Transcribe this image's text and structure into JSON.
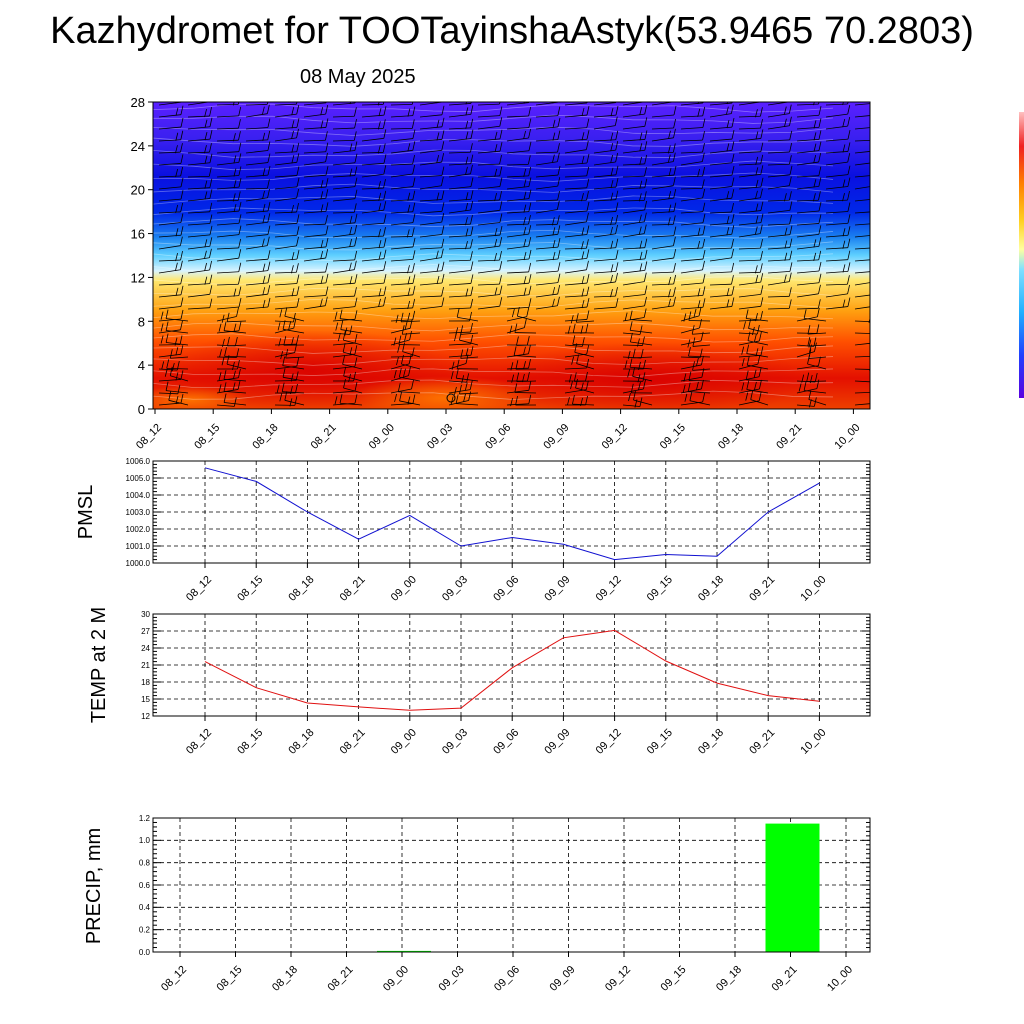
{
  "title": "Kazhydromet for TOOTayinshaAstyk(53.9465 70.2803)",
  "date": "08 May 2025",
  "colors": {
    "pressure_line": "#1010d0",
    "temperature_line": "#e01010",
    "precip_bar": "#00ff00",
    "cross_section_scale": [
      "#2a00ff",
      "#0020e0",
      "#0a5ae0",
      "#60d0ff",
      "#e8f0e0",
      "#ffe060",
      "#ffa000",
      "#ff4000",
      "#e00000"
    ],
    "wind_barbs": "#000000"
  },
  "chart_data": [
    {
      "type": "heatmap",
      "name": "cross-section",
      "x": [
        "08_12",
        "08_15",
        "08_18",
        "08_21",
        "09_00",
        "09_03",
        "09_06",
        "09_09",
        "09_12",
        "09_15",
        "09_18",
        "09_21",
        "10_00"
      ],
      "yticks": [
        "0",
        "4",
        "8",
        "12",
        "16",
        "20",
        "24",
        "28"
      ],
      "ylim": [
        0,
        28
      ],
      "overlay": "wind barbs"
    },
    {
      "type": "line",
      "ylabel": "PMSL",
      "x": [
        "08_12",
        "08_15",
        "08_18",
        "08_21",
        "09_00",
        "09_03",
        "09_06",
        "09_09",
        "09_12",
        "09_15",
        "09_18",
        "09_21",
        "10_00"
      ],
      "values": [
        1005.6,
        1004.8,
        1003.0,
        1001.4,
        1002.8,
        1001.0,
        1001.5,
        1001.1,
        1000.2,
        1000.5,
        1000.4,
        1003.0,
        1004.7
      ],
      "ylim": [
        1000.0,
        1006.0
      ],
      "yticks": [
        "1000.0",
        "1001.0",
        "1002.0",
        "1003.0",
        "1004.0",
        "1005.0",
        "1006.0"
      ],
      "grid": true
    },
    {
      "type": "line",
      "ylabel": "TEMP at 2 M",
      "x": [
        "08_12",
        "08_15",
        "08_18",
        "08_21",
        "09_00",
        "09_03",
        "09_06",
        "09_09",
        "09_12",
        "09_15",
        "09_18",
        "09_21",
        "10_00"
      ],
      "values": [
        21.6,
        17.0,
        14.3,
        13.6,
        13.0,
        13.4,
        20.5,
        25.8,
        27.1,
        21.7,
        17.8,
        15.6,
        14.6
      ],
      "ylim": [
        12,
        30
      ],
      "yticks": [
        "12",
        "15",
        "18",
        "21",
        "24",
        "27",
        "30"
      ],
      "grid": true
    },
    {
      "type": "bar",
      "ylabel": "PRECIP, mm",
      "x": [
        "08_12",
        "08_15",
        "08_18",
        "08_21",
        "09_00",
        "09_03",
        "09_06",
        "09_09",
        "09_12",
        "09_15",
        "09_18",
        "09_21",
        "10_00"
      ],
      "values": [
        0,
        0,
        0,
        0,
        0.01,
        0,
        0,
        0,
        0,
        0,
        0,
        1.15,
        0
      ],
      "ylim": [
        0,
        1.2
      ],
      "yticks": [
        "0.0",
        "0.2",
        "0.4",
        "0.6",
        "0.8",
        "1.0",
        "1.2"
      ],
      "grid": true
    }
  ]
}
